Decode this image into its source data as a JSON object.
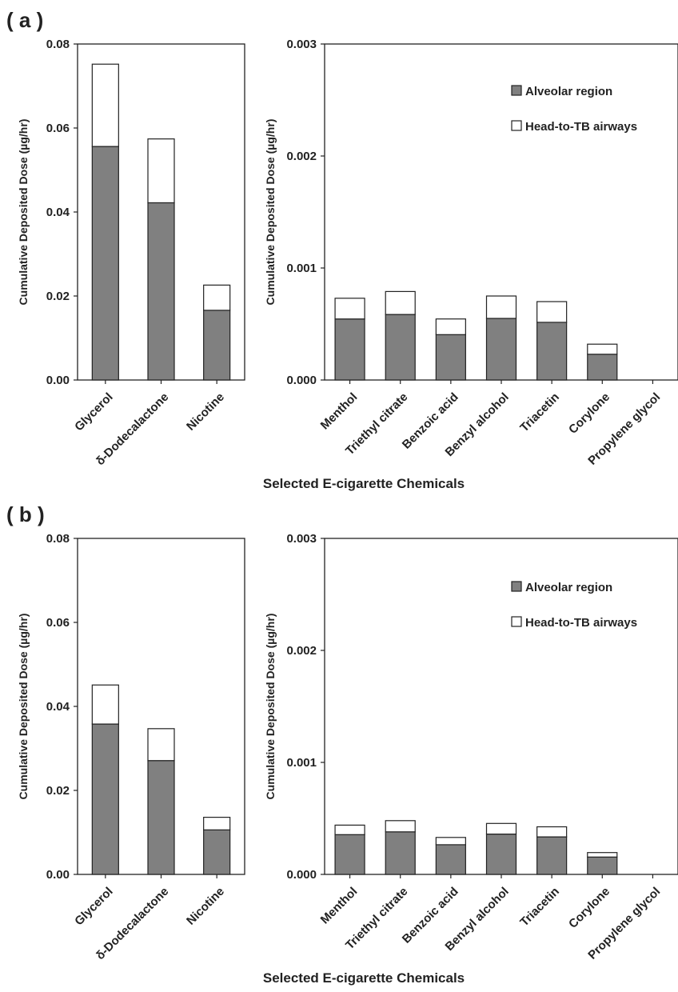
{
  "figure": {
    "panels": [
      {
        "label": "( a )",
        "xlabel": "Selected E-cigarette Chemicals"
      },
      {
        "label": "( b )",
        "xlabel": "Selected E-cigarette Chemicals"
      }
    ]
  },
  "colors": {
    "alveolar": "#808080",
    "head": "#ffffff",
    "stroke": "#222222"
  },
  "chart_data": [
    {
      "type": "bar",
      "stacked": true,
      "panel": "a",
      "subplot": "left",
      "categories": [
        "Glycerol",
        "δ-Dodecalactone",
        "Nicotine"
      ],
      "series": [
        {
          "name": "Alveolar region",
          "values": [
            0.0556,
            0.0422,
            0.0166
          ]
        },
        {
          "name": "Head-to-TB airways",
          "values": [
            0.0196,
            0.0152,
            0.006
          ]
        }
      ],
      "ylabel": "Cumulative Deposited Dose (µg/hr)",
      "ylim": [
        0,
        0.08
      ],
      "yticks": [
        "0.00",
        "0.02",
        "0.04",
        "0.06",
        "0.08"
      ],
      "legend": "none"
    },
    {
      "type": "bar",
      "stacked": true,
      "panel": "a",
      "subplot": "right",
      "categories": [
        "Menthol",
        "Triethyl citrate",
        "Benzoic acid",
        "Benzyl alcohol",
        "Triacetin",
        "Corylone",
        "Propylene glycol"
      ],
      "series": [
        {
          "name": "Alveolar region",
          "values": [
            0.000545,
            0.000585,
            0.000405,
            0.00055,
            0.000515,
            0.00023,
            0
          ]
        },
        {
          "name": "Head-to-TB airways",
          "values": [
            0.000185,
            0.000205,
            0.00014,
            0.0002,
            0.000185,
            9e-05,
            0
          ]
        }
      ],
      "ylabel": "Cumulative Deposited Dose (µg/hr)",
      "ylim": [
        0,
        0.003
      ],
      "yticks": [
        "0.000",
        "0.001",
        "0.002",
        "0.003"
      ],
      "legend": "top-right"
    },
    {
      "type": "bar",
      "stacked": true,
      "panel": "b",
      "subplot": "left",
      "categories": [
        "Glycerol",
        "δ-Dodecalactone",
        "Nicotine"
      ],
      "series": [
        {
          "name": "Alveolar region",
          "values": [
            0.0358,
            0.0271,
            0.0106
          ]
        },
        {
          "name": "Head-to-TB airways",
          "values": [
            0.0093,
            0.0076,
            0.003
          ]
        }
      ],
      "ylabel": "Cumulative Deposited Dose (µg/hr)",
      "ylim": [
        0,
        0.08
      ],
      "yticks": [
        "0.00",
        "0.02",
        "0.04",
        "0.06",
        "0.08"
      ],
      "legend": "none"
    },
    {
      "type": "bar",
      "stacked": true,
      "panel": "b",
      "subplot": "right",
      "categories": [
        "Menthol",
        "Triethyl citrate",
        "Benzoic acid",
        "Benzyl alcohol",
        "Triacetin",
        "Corylone",
        "Propylene glycol"
      ],
      "series": [
        {
          "name": "Alveolar region",
          "values": [
            0.000355,
            0.00038,
            0.000265,
            0.00036,
            0.000335,
            0.000155,
            0
          ]
        },
        {
          "name": "Head-to-TB airways",
          "values": [
            8.5e-05,
            0.0001,
            6.5e-05,
            9.5e-05,
            9e-05,
            4e-05,
            0
          ]
        }
      ],
      "ylabel": "Cumulative Deposited Dose (µg/hr)",
      "ylim": [
        0,
        0.003
      ],
      "yticks": [
        "0.000",
        "0.001",
        "0.002",
        "0.003"
      ],
      "legend": "top-right"
    }
  ]
}
